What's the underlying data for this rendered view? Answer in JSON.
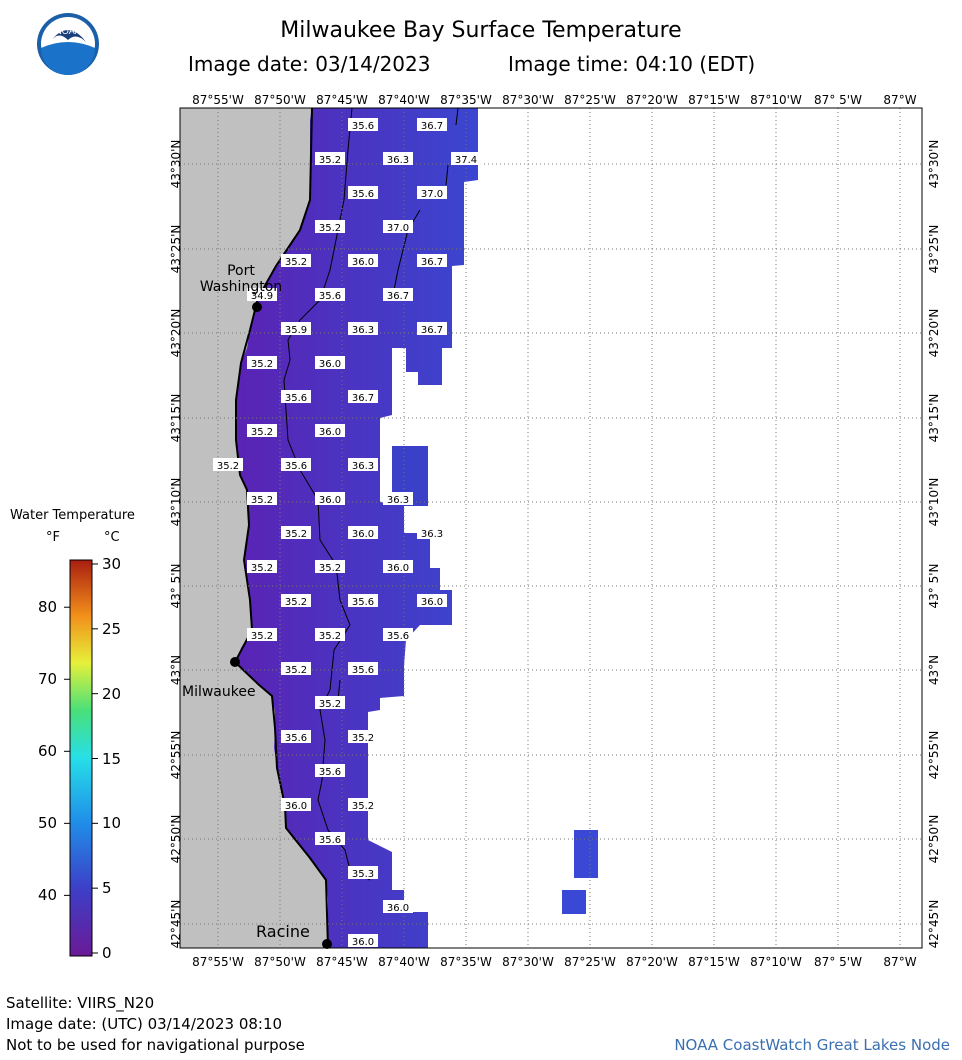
{
  "header": {
    "title": "Milwaukee Bay Surface Temperature",
    "image_date": "Image date: 03/14/2023",
    "image_time": "Image time: 04:10 (EDT)"
  },
  "logo": {
    "text": "NOAA",
    "color": "#1a5fa8"
  },
  "map": {
    "lon_labels": [
      "87°55'W",
      "87°50'W",
      "87°45'W",
      "87°40'W",
      "87°35'W",
      "87°30'W",
      "87°25'W",
      "87°20'W",
      "87°15'W",
      "87°10'W",
      "87° 5'W",
      "87°W"
    ],
    "lat_labels": [
      "43°30'N",
      "43°25'N",
      "43°20'N",
      "43°15'N",
      "43°10'N",
      "43° 5'N",
      "43°N",
      "42°55'N",
      "42°50'N",
      "42°45'N"
    ],
    "cities": [
      {
        "name": "Port Washington"
      },
      {
        "name": "Milwaukee"
      },
      {
        "name": "Racine"
      }
    ],
    "temperatures": [
      "35.6",
      "36.7",
      "35.2",
      "36.3",
      "37.4",
      "35.6",
      "37.0",
      "35.2",
      "37.0",
      "35.2",
      "36.0",
      "36.7",
      "34.9",
      "35.6",
      "36.7",
      "35.9",
      "36.3",
      "36.7",
      "35.2",
      "36.0",
      "35.6",
      "36.7",
      "35.2",
      "36.0",
      "35.2",
      "35.6",
      "36.3",
      "35.2",
      "36.0",
      "36.3",
      "35.2",
      "36.0",
      "36.3",
      "35.2",
      "35.2",
      "36.0",
      "35.2",
      "35.6",
      "36.0",
      "35.2",
      "35.2",
      "35.6",
      "35.2",
      "35.6",
      "35.2",
      "35.6",
      "35.2",
      "35.6",
      "36.0",
      "35.2",
      "35.6",
      "35.3",
      "36.0",
      "36.0"
    ],
    "colors": {
      "land": "#c0c0c0",
      "water_base": "#5a2fc0",
      "grid": "#777777"
    }
  },
  "legend": {
    "title": "Water Temperature",
    "unit_f": "°F",
    "unit_c": "°C",
    "f_ticks": [
      "80",
      "70",
      "60",
      "50",
      "40"
    ],
    "c_ticks": [
      "30",
      "25",
      "20",
      "15",
      "10",
      "5",
      "0"
    ]
  },
  "footer": {
    "satellite": "Satellite: VIIRS_N20",
    "utc_date": "Image date: (UTC) 03/14/2023  08:10",
    "disclaimer": "Not to be used for navigational purpose",
    "credit": "NOAA CoastWatch Great Lakes Node"
  }
}
